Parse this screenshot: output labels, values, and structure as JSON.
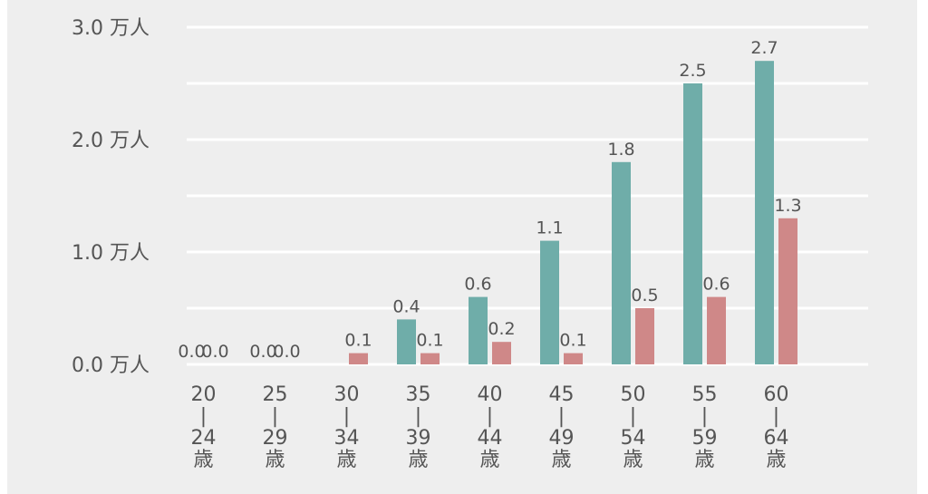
{
  "chart_data": {
    "type": "bar",
    "categories": [
      [
        "20",
        "|",
        "24",
        "歳"
      ],
      [
        "25",
        "|",
        "29",
        "歳"
      ],
      [
        "30",
        "|",
        "34",
        "歳"
      ],
      [
        "35",
        "|",
        "39",
        "歳"
      ],
      [
        "40",
        "|",
        "44",
        "歳"
      ],
      [
        "45",
        "|",
        "49",
        "歳"
      ],
      [
        "50",
        "|",
        "54",
        "歳"
      ],
      [
        "55",
        "|",
        "59",
        "歳"
      ],
      [
        "60",
        "|",
        "64",
        "歳"
      ]
    ],
    "series": [
      {
        "values": [
          0.0,
          0.0,
          0.0,
          0.4,
          0.6,
          1.1,
          1.8,
          2.5,
          2.7
        ],
        "labels": [
          "0.0",
          "0.0",
          "",
          "0.4",
          "0.6",
          "1.1",
          "1.8",
          "2.5",
          "2.7"
        ],
        "color": "#6fada9"
      },
      {
        "values": [
          0.0,
          0.0,
          0.1,
          0.1,
          0.2,
          0.1,
          0.5,
          0.6,
          1.3
        ],
        "labels": [
          "0.0",
          "0.0",
          "0.1",
          "0.1",
          "0.2",
          "0.1",
          "0.5",
          "0.6",
          "1.3"
        ],
        "color": "#cf8888"
      }
    ],
    "yticks": [
      {
        "value": 0.0,
        "label": "0.0 万人"
      },
      {
        "value": 1.0,
        "label": "1.0 万人"
      },
      {
        "value": 2.0,
        "label": "2.0 万人"
      },
      {
        "value": 3.0,
        "label": "3.0 万人"
      }
    ],
    "minor_gridlines": [
      0.5,
      1.5,
      2.5
    ],
    "ylim": [
      0,
      3.0
    ],
    "grid": true,
    "title": "",
    "xlabel": "",
    "ylabel": ""
  }
}
